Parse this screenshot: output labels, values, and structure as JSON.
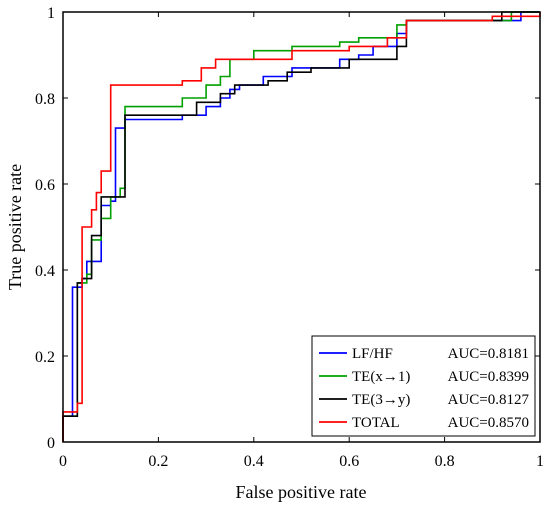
{
  "chart_data": {
    "type": "line",
    "title": "",
    "xlabel": "False positive rate",
    "ylabel": "True positive rate",
    "xlim": [
      0,
      1
    ],
    "ylim": [
      0,
      1
    ],
    "xticks": [
      0,
      0.2,
      0.4,
      0.6,
      0.8,
      1
    ],
    "yticks": [
      0,
      0.2,
      0.4,
      0.6,
      0.8,
      1
    ],
    "xtick_labels": [
      "0",
      "0.2",
      "0.4",
      "0.6",
      "0.8",
      "1"
    ],
    "ytick_labels": [
      "0",
      "0.2",
      "0.4",
      "0.6",
      "0.8",
      "1"
    ],
    "grid": false,
    "legend_position": "bottom-right",
    "series": [
      {
        "name": "LF/HF",
        "auc_label": "AUC=0.8181",
        "color": "#0000ff",
        "points": [
          [
            0,
            0
          ],
          [
            0,
            0.06
          ],
          [
            0.02,
            0.06
          ],
          [
            0.02,
            0.36
          ],
          [
            0.04,
            0.36
          ],
          [
            0.04,
            0.38
          ],
          [
            0.05,
            0.38
          ],
          [
            0.05,
            0.42
          ],
          [
            0.08,
            0.42
          ],
          [
            0.08,
            0.55
          ],
          [
            0.1,
            0.55
          ],
          [
            0.1,
            0.56
          ],
          [
            0.11,
            0.56
          ],
          [
            0.11,
            0.73
          ],
          [
            0.13,
            0.73
          ],
          [
            0.13,
            0.75
          ],
          [
            0.25,
            0.75
          ],
          [
            0.25,
            0.76
          ],
          [
            0.3,
            0.76
          ],
          [
            0.3,
            0.78
          ],
          [
            0.33,
            0.78
          ],
          [
            0.33,
            0.8
          ],
          [
            0.35,
            0.8
          ],
          [
            0.35,
            0.82
          ],
          [
            0.37,
            0.82
          ],
          [
            0.37,
            0.83
          ],
          [
            0.42,
            0.83
          ],
          [
            0.42,
            0.85
          ],
          [
            0.48,
            0.85
          ],
          [
            0.48,
            0.87
          ],
          [
            0.58,
            0.87
          ],
          [
            0.58,
            0.89
          ],
          [
            0.62,
            0.89
          ],
          [
            0.62,
            0.9
          ],
          [
            0.65,
            0.9
          ],
          [
            0.65,
            0.92
          ],
          [
            0.7,
            0.92
          ],
          [
            0.7,
            0.95
          ],
          [
            0.72,
            0.95
          ],
          [
            0.72,
            0.98
          ],
          [
            0.96,
            0.98
          ],
          [
            0.96,
            1
          ],
          [
            1,
            1
          ]
        ]
      },
      {
        "name": "TE(x→1)",
        "auc_label": "AUC=0.8399",
        "color": "#00a000",
        "points": [
          [
            0,
            0
          ],
          [
            0,
            0.06
          ],
          [
            0.03,
            0.06
          ],
          [
            0.03,
            0.37
          ],
          [
            0.05,
            0.37
          ],
          [
            0.05,
            0.39
          ],
          [
            0.06,
            0.39
          ],
          [
            0.06,
            0.47
          ],
          [
            0.08,
            0.47
          ],
          [
            0.08,
            0.52
          ],
          [
            0.1,
            0.52
          ],
          [
            0.1,
            0.57
          ],
          [
            0.12,
            0.57
          ],
          [
            0.12,
            0.59
          ],
          [
            0.13,
            0.59
          ],
          [
            0.13,
            0.78
          ],
          [
            0.25,
            0.78
          ],
          [
            0.25,
            0.8
          ],
          [
            0.3,
            0.8
          ],
          [
            0.3,
            0.83
          ],
          [
            0.33,
            0.83
          ],
          [
            0.33,
            0.85
          ],
          [
            0.35,
            0.85
          ],
          [
            0.35,
            0.89
          ],
          [
            0.4,
            0.89
          ],
          [
            0.4,
            0.91
          ],
          [
            0.48,
            0.91
          ],
          [
            0.48,
            0.92
          ],
          [
            0.58,
            0.92
          ],
          [
            0.58,
            0.93
          ],
          [
            0.62,
            0.93
          ],
          [
            0.62,
            0.94
          ],
          [
            0.7,
            0.94
          ],
          [
            0.7,
            0.97
          ],
          [
            0.72,
            0.97
          ],
          [
            0.72,
            0.98
          ],
          [
            0.94,
            0.98
          ],
          [
            0.94,
            1
          ],
          [
            1,
            1
          ]
        ]
      },
      {
        "name": "TE(3→y)",
        "auc_label": "AUC=0.8127",
        "color": "#000000",
        "points": [
          [
            0,
            0
          ],
          [
            0,
            0.06
          ],
          [
            0.03,
            0.06
          ],
          [
            0.03,
            0.37
          ],
          [
            0.04,
            0.37
          ],
          [
            0.04,
            0.38
          ],
          [
            0.06,
            0.38
          ],
          [
            0.06,
            0.48
          ],
          [
            0.08,
            0.48
          ],
          [
            0.08,
            0.57
          ],
          [
            0.13,
            0.57
          ],
          [
            0.13,
            0.76
          ],
          [
            0.28,
            0.76
          ],
          [
            0.28,
            0.79
          ],
          [
            0.33,
            0.79
          ],
          [
            0.33,
            0.81
          ],
          [
            0.36,
            0.81
          ],
          [
            0.36,
            0.83
          ],
          [
            0.43,
            0.83
          ],
          [
            0.43,
            0.84
          ],
          [
            0.47,
            0.84
          ],
          [
            0.47,
            0.86
          ],
          [
            0.52,
            0.86
          ],
          [
            0.52,
            0.87
          ],
          [
            0.6,
            0.87
          ],
          [
            0.6,
            0.89
          ],
          [
            0.7,
            0.89
          ],
          [
            0.7,
            0.92
          ],
          [
            0.72,
            0.92
          ],
          [
            0.72,
            0.98
          ],
          [
            0.92,
            0.98
          ],
          [
            0.92,
            1
          ],
          [
            1,
            1
          ]
        ]
      },
      {
        "name": "TOTAL",
        "auc_label": "AUC=0.8570",
        "color": "#ff0000",
        "points": [
          [
            0,
            0
          ],
          [
            0,
            0.07
          ],
          [
            0.03,
            0.07
          ],
          [
            0.03,
            0.09
          ],
          [
            0.04,
            0.09
          ],
          [
            0.04,
            0.5
          ],
          [
            0.06,
            0.5
          ],
          [
            0.06,
            0.54
          ],
          [
            0.07,
            0.54
          ],
          [
            0.07,
            0.58
          ],
          [
            0.08,
            0.58
          ],
          [
            0.08,
            0.63
          ],
          [
            0.1,
            0.63
          ],
          [
            0.1,
            0.83
          ],
          [
            0.25,
            0.83
          ],
          [
            0.25,
            0.84
          ],
          [
            0.29,
            0.84
          ],
          [
            0.29,
            0.87
          ],
          [
            0.32,
            0.87
          ],
          [
            0.32,
            0.89
          ],
          [
            0.48,
            0.89
          ],
          [
            0.48,
            0.91
          ],
          [
            0.6,
            0.91
          ],
          [
            0.6,
            0.92
          ],
          [
            0.68,
            0.92
          ],
          [
            0.68,
            0.94
          ],
          [
            0.72,
            0.94
          ],
          [
            0.72,
            0.98
          ],
          [
            0.9,
            0.98
          ],
          [
            0.9,
            0.99
          ],
          [
            1,
            0.99
          ],
          [
            1,
            1
          ]
        ]
      }
    ]
  }
}
